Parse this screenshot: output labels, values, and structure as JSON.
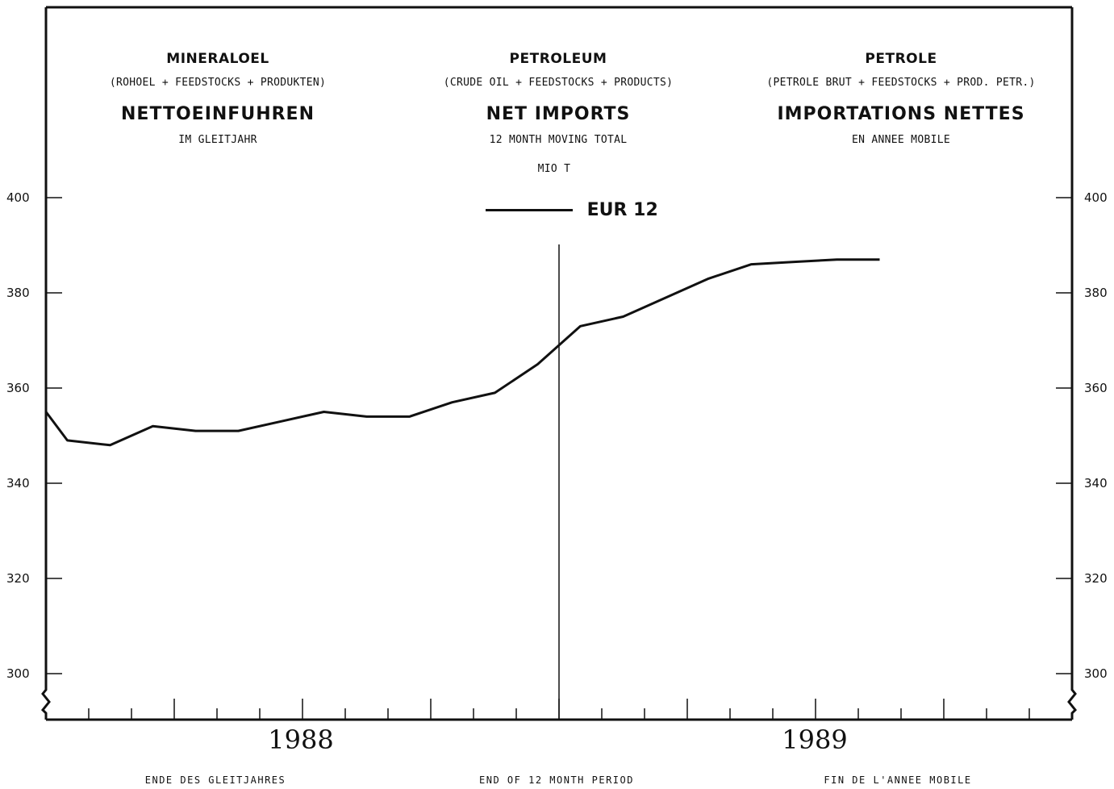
{
  "headings": {
    "de": {
      "title": "MINERALOEL",
      "subtitle": "(ROHOEL + FEEDSTOCKS + PRODUKTEN)",
      "main": "NETTOEINFUHREN",
      "period": "IM GLEITJAHR"
    },
    "en": {
      "title": "PETROLEUM",
      "subtitle": "(CRUDE OIL + FEEDSTOCKS + PRODUCTS)",
      "main": "NET IMPORTS",
      "period": "12 MONTH MOVING TOTAL",
      "unit": "MIO T"
    },
    "fr": {
      "title": "PETROLE",
      "subtitle": "(PETROLE BRUT + FEEDSTOCKS + PROD. PETR.)",
      "main": "IMPORTATIONS NETTES",
      "period": "EN ANNEE MOBILE"
    }
  },
  "footer": {
    "de": "ENDE DES GLEITJAHRES",
    "en": "END OF 12 MONTH PERIOD",
    "fr": "FIN DE L'ANNEE MOBILE"
  },
  "chart_data": {
    "type": "line",
    "ylim": [
      295,
      415
    ],
    "y_ticks": [
      "300",
      "320",
      "340",
      "360",
      "380",
      "400"
    ],
    "x_year_labels": [
      "1988",
      "1989"
    ],
    "months_total": 24,
    "year_divider_month": 12,
    "grid": false,
    "legend": "top-center",
    "series": [
      {
        "name": "EUR 12",
        "color": "#111111",
        "x": [
          0,
          0.5,
          1.5,
          2.5,
          3.5,
          4.5,
          5.5,
          6.5,
          7.5,
          8.5,
          9.5,
          10.5,
          11.5,
          12.5,
          13.5,
          14.5,
          15.5,
          16.5,
          17.5,
          18.5,
          19.5
        ],
        "values": [
          355,
          349,
          348,
          352,
          351,
          351,
          353,
          355,
          354,
          354,
          357,
          359,
          365,
          373,
          375,
          379,
          383,
          386,
          386.5,
          387,
          387
        ]
      }
    ]
  }
}
